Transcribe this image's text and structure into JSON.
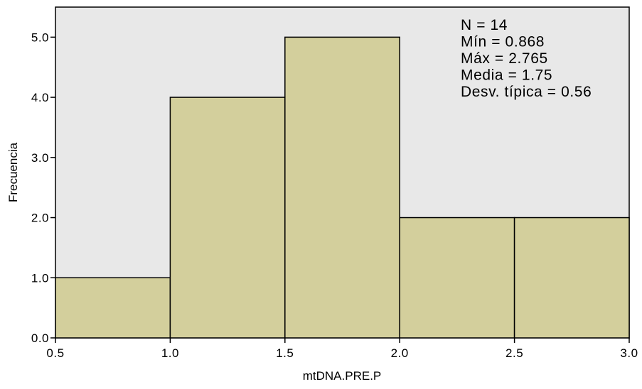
{
  "chart_data": {
    "type": "bar",
    "subtype": "histogram",
    "bins": [
      {
        "start": 0.5,
        "end": 1.0,
        "value": 1
      },
      {
        "start": 1.0,
        "end": 1.5,
        "value": 4
      },
      {
        "start": 1.5,
        "end": 2.0,
        "value": 5
      },
      {
        "start": 2.0,
        "end": 2.5,
        "value": 2
      },
      {
        "start": 2.5,
        "end": 3.0,
        "value": 2
      }
    ],
    "xlabel": "mtDNA.PRE.P",
    "ylabel": "Frecuencia",
    "xlim": [
      0.5,
      3.0
    ],
    "ylim": [
      0,
      5.5
    ],
    "x_ticks": [
      0.5,
      1.0,
      1.5,
      2.0,
      2.5,
      3.0
    ],
    "x_tick_labels": [
      "0.5",
      "1.0",
      "1.5",
      "2.0",
      "2.5",
      "3.0"
    ],
    "y_ticks": [
      0,
      1,
      2,
      3,
      4,
      5
    ],
    "y_tick_labels": [
      "0.0",
      "1.0",
      "2.0",
      "3.0",
      "4.0",
      "5.0"
    ],
    "grid": false,
    "stats_box_position": "top-right",
    "stats_lines": [
      "N = 14",
      "Mín = 0.868",
      "Máx = 2.765",
      "Media = 1.75",
      "Desv. típica = 0.56"
    ],
    "colors": {
      "bar_fill": "#d3cf9c",
      "plot_background": "#e8e8e8",
      "outline": "#000000"
    }
  }
}
